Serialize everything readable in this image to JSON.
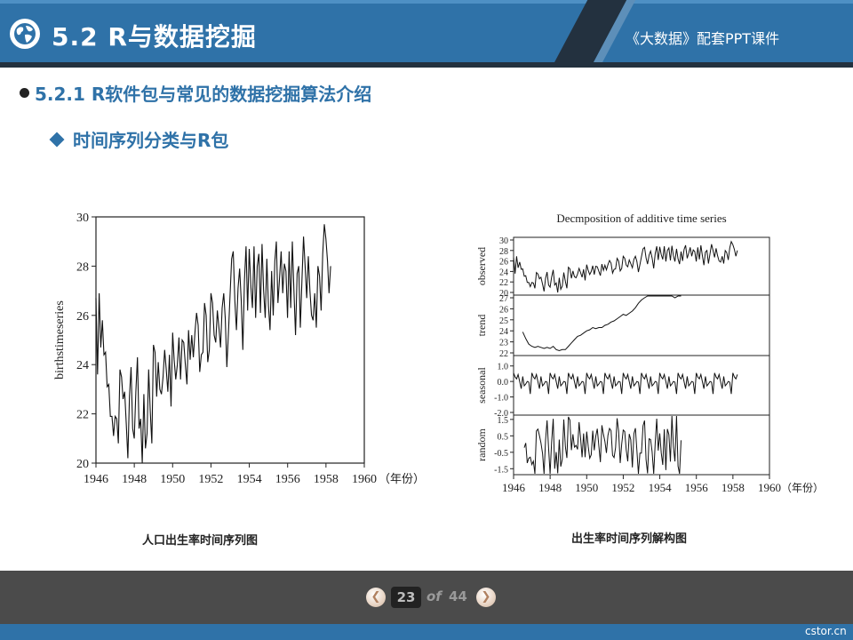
{
  "header": {
    "title": "5.2  R与数据挖掘",
    "subtitle": "《大数据》配套PPT课件"
  },
  "section": {
    "heading": "5.2.1 R软件包与常见的数据挖掘算法介绍",
    "subheading": "时间序列分类与R包"
  },
  "colors": {
    "accent": "#2f72a8",
    "dark": "#23313f",
    "footer": "#4b4b4b"
  },
  "icons": {
    "logo": "globe-icon",
    "prev": "chevron-left-icon",
    "next": "chevron-right-icon"
  },
  "chart_data": [
    {
      "type": "line",
      "caption": "人口出生率时间序列图",
      "ylabel": "birthstimeseries",
      "xlabel": "",
      "xunit": "（年份）",
      "xlim": [
        1946,
        1960
      ],
      "ylim": [
        20,
        30
      ],
      "xticks": [
        "1946",
        "1948",
        "1950",
        "1952",
        "1954",
        "1956",
        "1958",
        "1960"
      ],
      "yticks": [
        "20",
        "22",
        "24",
        "26",
        "28",
        "30"
      ],
      "start": 1946.0,
      "step": 0.0833,
      "values": [
        26.7,
        23.6,
        26.9,
        24.7,
        25.8,
        24.4,
        24.5,
        23.1,
        23.2,
        21.9,
        21.9,
        21.1,
        21.9,
        21.8,
        20.8,
        23.8,
        23.5,
        22.6,
        22.9,
        21.6,
        20.2,
        22.7,
        23.9,
        21.4,
        21.0,
        22.9,
        24.3,
        21.4,
        21.8,
        20.0,
        22.8,
        20.6,
        21.2,
        23.8,
        22.1,
        20.8,
        24.8,
        24.5,
        22.7,
        24.1,
        23.0,
        22.8,
        23.5,
        24.6,
        23.8,
        22.9,
        24.4,
        22.3,
        25.3,
        24.2,
        23.4,
        24.0,
        25.1,
        23.4,
        25.0,
        24.9,
        24.0,
        23.2,
        25.4,
        24.2,
        25.2,
        24.3,
        25.3,
        26.1,
        25.6,
        23.7,
        24.4,
        24.5,
        26.5,
        26.0,
        24.1,
        24.6,
        26.9,
        26.5,
        25.2,
        24.9,
        26.2,
        25.5,
        24.7,
        26.3,
        26.9,
        25.9,
        23.9,
        25.3,
        26.8,
        28.3,
        28.6,
        26.6,
        25.4,
        27.1,
        27.9,
        26.6,
        24.6,
        27.4,
        28.8,
        26.2,
        28.7,
        27.2,
        26.3,
        28.8,
        25.9,
        28.0,
        28.5,
        26.1,
        28.9,
        27.0,
        25.9,
        28.3,
        26.4,
        25.4,
        27.8,
        26.0,
        28.2,
        29.0,
        26.5,
        27.5,
        28.6,
        26.9,
        28.1,
        27.8,
        25.9,
        28.6,
        26.3,
        29.0,
        27.0,
        25.2,
        27.7,
        28.0,
        25.5,
        27.4,
        29.2,
        28.0,
        26.7,
        28.4,
        27.0,
        26.0,
        25.8,
        26.9,
        25.5,
        28.0,
        27.6,
        26.2,
        28.5,
        29.7,
        29.1,
        28.2,
        26.9,
        28.0
      ]
    },
    {
      "type": "line",
      "caption": "出生率时间序列解构图",
      "title": "Decmposition of additive time series",
      "xunit": "（年份）",
      "xlim": [
        1946,
        1960
      ],
      "xticks": [
        "1946",
        "1948",
        "1950",
        "1952",
        "1954",
        "1956",
        "1958",
        "1960"
      ],
      "panels": [
        {
          "name": "observed",
          "ylim": [
            20,
            30
          ],
          "yticks": [
            "20",
            "22",
            "24",
            "26",
            "28",
            "30"
          ],
          "start": 1946.0
        },
        {
          "name": "trend",
          "ylim": [
            22,
            27
          ],
          "yticks": [
            "22",
            "23",
            "24",
            "25",
            "26",
            "27"
          ],
          "start": 1946.5,
          "values": [
            23.9,
            23.3,
            22.8,
            22.6,
            22.5,
            22.6,
            22.5,
            22.4,
            22.5,
            22.4,
            22.6,
            22.3,
            22.2,
            22.3,
            22.3,
            22.6,
            22.9,
            23.2,
            23.5,
            23.6,
            23.8,
            24.0,
            24.1,
            24.3,
            24.2,
            24.3,
            24.3,
            24.5,
            24.6,
            24.8,
            24.9,
            25.1,
            25.3,
            25.5,
            25.4,
            25.6,
            25.8,
            26.1,
            26.5,
            26.8,
            27.0,
            27.2,
            27.3,
            27.4,
            27.3,
            27.5,
            27.4,
            27.5,
            27.6,
            27.3,
            27.0,
            27.2,
            27.4
          ]
        },
        {
          "name": "seasonal",
          "ylim": [
            -2.0,
            1.5
          ],
          "yticks": [
            "-2.0",
            "-1.0",
            "0.0",
            "1.0"
          ],
          "start": 1946.0
        },
        {
          "name": "random",
          "ylim": [
            -1.7,
            1.6
          ],
          "yticks": [
            "-1.5",
            "-0.5",
            "0.5",
            "1.5"
          ],
          "start": 1946.5
        }
      ]
    }
  ],
  "pagination": {
    "current": "23",
    "of": "of",
    "total": "44"
  },
  "watermark": "cstor.cn"
}
